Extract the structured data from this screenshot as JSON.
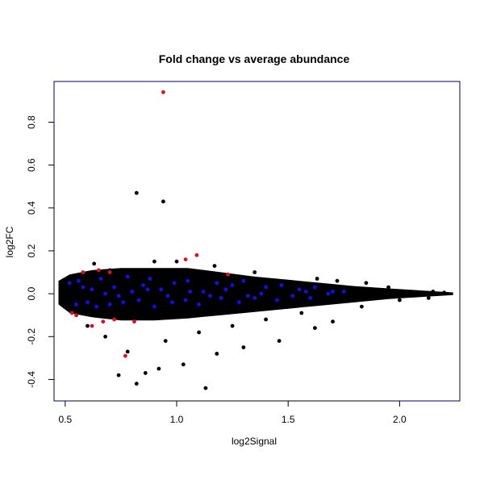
{
  "chart_data": {
    "type": "scatter",
    "title": "Fold change vs average abundance",
    "xlabel": "log2Signal",
    "ylabel": "log2FC",
    "xlim": [
      0.45,
      2.27
    ],
    "ylim": [
      -0.5,
      0.99
    ],
    "xticks": [
      "0.5",
      "1.0",
      "1.5",
      "2.0"
    ],
    "yticks": [
      "-0.4",
      "-0.2",
      "0.0",
      "0.2",
      "0.4",
      "0.6",
      "0.8"
    ],
    "grid": false,
    "legend": "none",
    "colors": {
      "background": "#000000",
      "blue": "#1010ee",
      "red": "#dd1122",
      "frame": "#000066"
    },
    "series": [
      {
        "color": "#000000",
        "points": [
          [
            0.82,
            0.47
          ],
          [
            0.94,
            0.43
          ],
          [
            0.63,
            0.14
          ],
          [
            0.9,
            0.15
          ],
          [
            1.0,
            0.15
          ],
          [
            1.17,
            0.13
          ],
          [
            1.35,
            0.1
          ],
          [
            1.63,
            0.07
          ],
          [
            1.72,
            0.06
          ],
          [
            1.85,
            0.05
          ],
          [
            2.2,
            0.005
          ],
          [
            2.15,
            0.01
          ],
          [
            0.74,
            -0.38
          ],
          [
            0.82,
            -0.42
          ],
          [
            1.13,
            -0.44
          ],
          [
            0.92,
            -0.35
          ],
          [
            1.03,
            -0.33
          ],
          [
            1.18,
            -0.28
          ],
          [
            0.86,
            -0.37
          ],
          [
            1.3,
            -0.25
          ],
          [
            1.46,
            -0.22
          ],
          [
            1.62,
            -0.16
          ],
          [
            1.7,
            -0.13
          ],
          [
            1.83,
            -0.06
          ],
          [
            2.0,
            -0.03
          ],
          [
            0.55,
            -0.1
          ],
          [
            0.68,
            -0.2
          ],
          [
            0.6,
            -0.15
          ],
          [
            0.78,
            -0.27
          ],
          [
            0.95,
            -0.22
          ],
          [
            1.1,
            -0.18
          ],
          [
            1.25,
            -0.15
          ],
          [
            1.4,
            -0.12
          ],
          [
            1.56,
            -0.09
          ],
          [
            0.7,
            0.11
          ],
          [
            0.8,
            0.1
          ],
          [
            1.08,
            0.09
          ],
          [
            1.28,
            0.08
          ],
          [
            1.45,
            0.06
          ],
          [
            1.95,
            0.03
          ],
          [
            2.13,
            -0.02
          ]
        ]
      },
      {
        "color": "#1010ee",
        "points": [
          [
            0.52,
            0.05
          ],
          [
            0.56,
            0.06
          ],
          [
            0.62,
            0.02
          ],
          [
            0.66,
            0.07
          ],
          [
            0.72,
            0.03
          ],
          [
            0.78,
            0.08
          ],
          [
            0.85,
            0.04
          ],
          [
            0.88,
            0.07
          ],
          [
            0.93,
            0.02
          ],
          [
            0.99,
            0.05
          ],
          [
            1.05,
            0.06
          ],
          [
            1.12,
            0.01
          ],
          [
            1.18,
            0.05
          ],
          [
            1.25,
            0.04
          ],
          [
            1.3,
            0.06
          ],
          [
            1.4,
            0.03
          ],
          [
            1.47,
            0.04
          ],
          [
            1.55,
            0.02
          ],
          [
            1.62,
            0.03
          ],
          [
            1.7,
            0.01
          ],
          [
            0.55,
            -0.05
          ],
          [
            0.6,
            -0.04
          ],
          [
            0.64,
            -0.06
          ],
          [
            0.7,
            -0.05
          ],
          [
            0.76,
            -0.04
          ],
          [
            0.83,
            -0.03
          ],
          [
            0.9,
            -0.06
          ],
          [
            0.98,
            -0.04
          ],
          [
            1.04,
            -0.03
          ],
          [
            1.1,
            -0.05
          ],
          [
            1.2,
            -0.02
          ],
          [
            1.28,
            -0.04
          ],
          [
            1.35,
            -0.02
          ],
          [
            1.45,
            -0.03
          ],
          [
            1.52,
            -0.01
          ],
          [
            1.6,
            -0.02
          ],
          [
            1.68,
            0.0
          ],
          [
            1.75,
            0.01
          ],
          [
            1.06,
            0.01
          ],
          [
            1.15,
            -0.01
          ],
          [
            0.68,
            0.0
          ],
          [
            0.8,
            0.01
          ],
          [
            0.96,
            -0.01
          ],
          [
            1.38,
            0.0
          ],
          [
            1.58,
            0.01
          ],
          [
            0.58,
            0.03
          ],
          [
            0.74,
            -0.01
          ],
          [
            0.87,
            0.02
          ],
          [
            1.22,
            0.02
          ],
          [
            1.32,
            -0.01
          ]
        ]
      },
      {
        "color": "#dd1122",
        "points": [
          [
            0.94,
            0.94
          ],
          [
            1.09,
            0.18
          ],
          [
            1.04,
            0.16
          ],
          [
            0.55,
            -0.1
          ],
          [
            0.53,
            -0.09
          ],
          [
            0.65,
            0.11
          ],
          [
            0.58,
            0.1
          ],
          [
            0.62,
            -0.15
          ],
          [
            0.67,
            -0.13
          ],
          [
            0.72,
            -0.12
          ],
          [
            0.77,
            -0.29
          ],
          [
            0.81,
            -0.13
          ],
          [
            1.23,
            0.09
          ],
          [
            0.7,
            0.1
          ]
        ]
      }
    ]
  }
}
